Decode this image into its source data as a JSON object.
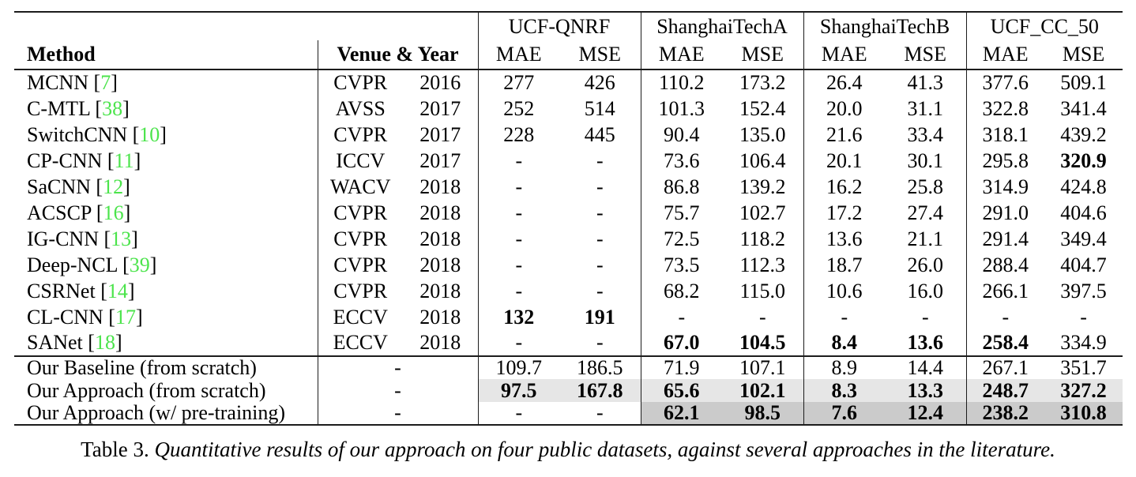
{
  "colors": {
    "citation_green": "#4ce44c",
    "highlight_light": "#e6e6e6",
    "highlight_dark": "#cbcbcb",
    "rule_color": "#1c1c1c"
  },
  "table": {
    "headers": {
      "method": "Method",
      "venue_year": "Venue & Year",
      "mae": "MAE",
      "mse": "MSE"
    },
    "datasets": [
      "UCF-QNRF",
      "ShanghaiTechA",
      "ShanghaiTechB",
      "UCF_CC_50"
    ],
    "rows": [
      {
        "group": "literature",
        "method": "MCNN",
        "cite": "7",
        "venue": "CVPR",
        "year": "2016",
        "values": [
          "277",
          "426",
          "110.2",
          "173.2",
          "26.4",
          "41.3",
          "377.6",
          "509.1"
        ],
        "bold": [
          0,
          0,
          0,
          0,
          0,
          0,
          0,
          0
        ]
      },
      {
        "group": "literature",
        "method": "C-MTL",
        "cite": "38",
        "venue": "AVSS",
        "year": "2017",
        "values": [
          "252",
          "514",
          "101.3",
          "152.4",
          "20.0",
          "31.1",
          "322.8",
          "341.4"
        ],
        "bold": [
          0,
          0,
          0,
          0,
          0,
          0,
          0,
          0
        ]
      },
      {
        "group": "literature",
        "method": "SwitchCNN",
        "cite": "10",
        "venue": "CVPR",
        "year": "2017",
        "values": [
          "228",
          "445",
          "90.4",
          "135.0",
          "21.6",
          "33.4",
          "318.1",
          "439.2"
        ],
        "bold": [
          0,
          0,
          0,
          0,
          0,
          0,
          0,
          0
        ]
      },
      {
        "group": "literature",
        "method": "CP-CNN",
        "cite": "11",
        "venue": "ICCV",
        "year": "2017",
        "values": [
          "-",
          "-",
          "73.6",
          "106.4",
          "20.1",
          "30.1",
          "295.8",
          "320.9"
        ],
        "bold": [
          0,
          0,
          0,
          0,
          0,
          0,
          0,
          1
        ]
      },
      {
        "group": "literature",
        "method": "SaCNN",
        "cite": "12",
        "venue": "WACV",
        "year": "2018",
        "values": [
          "-",
          "-",
          "86.8",
          "139.2",
          "16.2",
          "25.8",
          "314.9",
          "424.8"
        ],
        "bold": [
          0,
          0,
          0,
          0,
          0,
          0,
          0,
          0
        ]
      },
      {
        "group": "literature",
        "method": "ACSCP",
        "cite": "16",
        "venue": "CVPR",
        "year": "2018",
        "values": [
          "-",
          "-",
          "75.7",
          "102.7",
          "17.2",
          "27.4",
          "291.0",
          "404.6"
        ],
        "bold": [
          0,
          0,
          0,
          0,
          0,
          0,
          0,
          0
        ]
      },
      {
        "group": "literature",
        "method": "IG-CNN",
        "cite": "13",
        "venue": "CVPR",
        "year": "2018",
        "values": [
          "-",
          "-",
          "72.5",
          "118.2",
          "13.6",
          "21.1",
          "291.4",
          "349.4"
        ],
        "bold": [
          0,
          0,
          0,
          0,
          0,
          0,
          0,
          0
        ]
      },
      {
        "group": "literature",
        "method": "Deep-NCL",
        "cite": "39",
        "venue": "CVPR",
        "year": "2018",
        "values": [
          "-",
          "-",
          "73.5",
          "112.3",
          "18.7",
          "26.0",
          "288.4",
          "404.7"
        ],
        "bold": [
          0,
          0,
          0,
          0,
          0,
          0,
          0,
          0
        ]
      },
      {
        "group": "literature",
        "method": "CSRNet",
        "cite": "14",
        "venue": "CVPR",
        "year": "2018",
        "values": [
          "-",
          "-",
          "68.2",
          "115.0",
          "10.6",
          "16.0",
          "266.1",
          "397.5"
        ],
        "bold": [
          0,
          0,
          0,
          0,
          0,
          0,
          0,
          0
        ]
      },
      {
        "group": "literature",
        "method": "CL-CNN",
        "cite": "17",
        "venue": "ECCV",
        "year": "2018",
        "values": [
          "132",
          "191",
          "-",
          "-",
          "-",
          "-",
          "-",
          "-"
        ],
        "bold": [
          1,
          1,
          0,
          0,
          0,
          0,
          0,
          0
        ]
      },
      {
        "group": "literature",
        "method": "SANet",
        "cite": "18",
        "venue": "ECCV",
        "year": "2018",
        "values": [
          "-",
          "-",
          "67.0",
          "104.5",
          "8.4",
          "13.6",
          "258.4",
          "334.9"
        ],
        "bold": [
          0,
          0,
          1,
          1,
          1,
          1,
          1,
          0
        ]
      },
      {
        "group": "ours",
        "method": "Our Baseline (from scratch)",
        "cite": null,
        "venue": "-",
        "year": null,
        "values": [
          "109.7",
          "186.5",
          "71.9",
          "107.1",
          "8.9",
          "14.4",
          "267.1",
          "351.7"
        ],
        "bold": [
          0,
          0,
          0,
          0,
          0,
          0,
          0,
          0
        ]
      },
      {
        "group": "ours",
        "method": "Our Approach (from scratch)",
        "cite": null,
        "venue": "-",
        "year": null,
        "values": [
          "97.5",
          "167.8",
          "65.6",
          "102.1",
          "8.3",
          "13.3",
          "248.7",
          "327.2"
        ],
        "bold": [
          1,
          1,
          1,
          1,
          1,
          1,
          1,
          1
        ],
        "highlight": [
          "light",
          "light",
          "light",
          "light",
          "light",
          "light",
          "light",
          "light"
        ]
      },
      {
        "group": "ours",
        "method": "Our Approach (w/ pre-training)",
        "cite": null,
        "venue": "-",
        "year": null,
        "values": [
          "-",
          "-",
          "62.1",
          "98.5",
          "7.6",
          "12.4",
          "238.2",
          "310.8"
        ],
        "bold": [
          0,
          0,
          1,
          1,
          1,
          1,
          1,
          1
        ],
        "highlight": [
          "none",
          "none",
          "dark",
          "dark",
          "dark",
          "dark",
          "dark",
          "dark"
        ]
      }
    ],
    "caption": {
      "prefix": "Table 3. ",
      "text": "Quantitative results of our approach on four public datasets, against several approaches in the literature."
    }
  }
}
